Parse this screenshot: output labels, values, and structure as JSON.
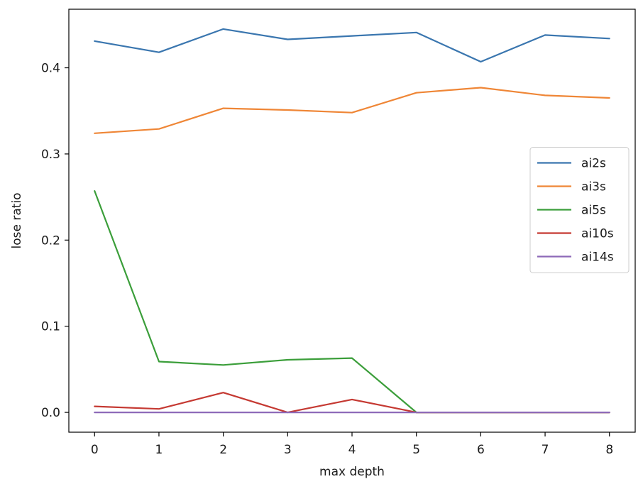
{
  "chart_data": {
    "type": "line",
    "xlabel": "max depth",
    "ylabel": "lose ratio",
    "x": [
      0,
      1,
      2,
      3,
      4,
      5,
      6,
      7,
      8
    ],
    "xticks": [
      "0",
      "1",
      "2",
      "3",
      "4",
      "5",
      "6",
      "7",
      "8"
    ],
    "yticks": [
      0.0,
      0.1,
      0.2,
      0.3,
      0.4
    ],
    "ytick_labels": [
      "0.0",
      "0.1",
      "0.2",
      "0.3",
      "0.4"
    ],
    "xlim": [
      -0.4,
      8.4
    ],
    "ylim": [
      -0.023,
      0.468
    ],
    "grid": false,
    "legend_position": "center-right",
    "series": [
      {
        "name": "ai2s",
        "color": "#3a76af",
        "values": [
          0.431,
          0.418,
          0.445,
          0.433,
          0.437,
          0.441,
          0.407,
          0.438,
          0.434
        ]
      },
      {
        "name": "ai3s",
        "color": "#ef8636",
        "values": [
          0.324,
          0.329,
          0.353,
          0.351,
          0.348,
          0.371,
          0.377,
          0.368,
          0.365
        ]
      },
      {
        "name": "ai5s",
        "color": "#3b9e3a",
        "values": [
          0.257,
          0.059,
          0.055,
          0.061,
          0.063,
          0.0,
          0.0,
          0.0,
          0.0
        ]
      },
      {
        "name": "ai10s",
        "color": "#c53932",
        "values": [
          0.007,
          0.004,
          0.023,
          0.0,
          0.015,
          0.0,
          0.0,
          0.0,
          0.0
        ]
      },
      {
        "name": "ai14s",
        "color": "#8d69b8",
        "values": [
          0.0,
          0.0,
          0.0,
          0.0,
          0.0,
          0.0,
          0.0,
          0.0,
          0.0
        ]
      }
    ]
  }
}
